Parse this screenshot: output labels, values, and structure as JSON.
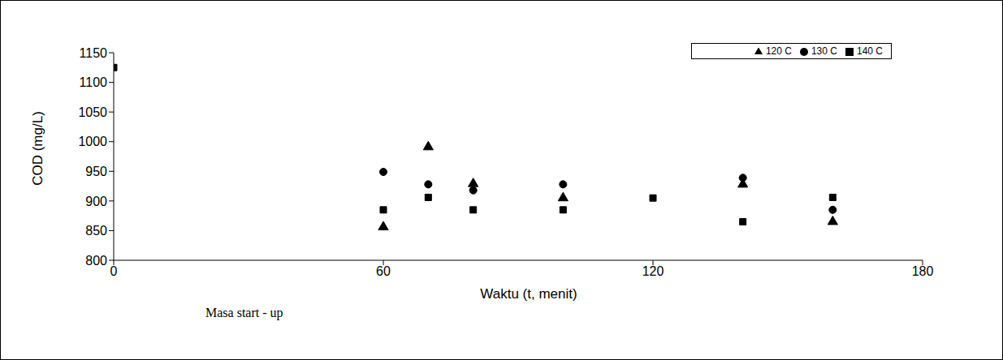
{
  "chart_data": {
    "type": "scatter",
    "x_label": "Waktu (t, menit)",
    "y_label": "COD (mg/L)",
    "annotations": [
      "Masa start - up"
    ],
    "xlim": [
      0,
      180
    ],
    "xticks": [
      0,
      60,
      120,
      180
    ],
    "ylim": [
      800,
      1150
    ],
    "yticks": [
      800,
      850,
      900,
      950,
      1000,
      1050,
      1100,
      1150
    ],
    "grid": false,
    "legend": "upper right",
    "series": [
      {
        "name": "120 C",
        "color": "#000000",
        "marker": "triangle",
        "x": [
          60,
          70,
          80,
          100,
          140,
          160
        ],
        "values": [
          856,
          991,
          929,
          905,
          928,
          865
        ]
      },
      {
        "name": "130 C",
        "color": "#000000",
        "marker": "circle",
        "x": [
          60,
          70,
          80,
          100,
          140,
          160
        ],
        "values": [
          949,
          928,
          918,
          928,
          939,
          885
        ]
      },
      {
        "name": "140 C",
        "color": "#000000",
        "marker": "square",
        "x": [
          0,
          60,
          70,
          80,
          100,
          120,
          140,
          160
        ],
        "values": [
          1125,
          885,
          906,
          885,
          885,
          905,
          865,
          906
        ]
      }
    ]
  }
}
